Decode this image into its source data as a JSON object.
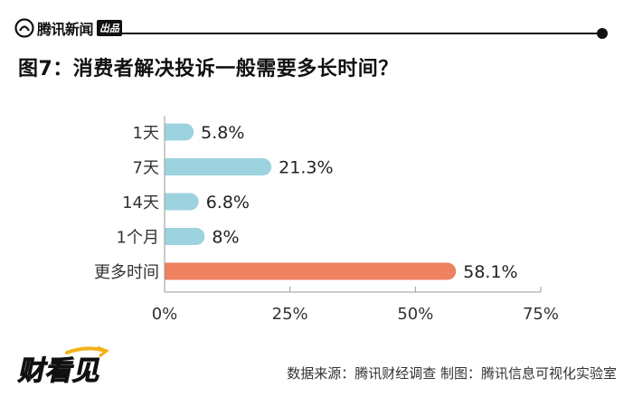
{
  "header": {
    "brand_name": "腾讯新闻",
    "brand_badge": "出品",
    "title": "图7：消费者解决投诉一般需要多长时间？"
  },
  "footer": {
    "logo_text": "财看见",
    "source": "数据来源：腾讯财经调查 制图：腾讯信息可视化实验室"
  },
  "chart_data": {
    "type": "bar",
    "orientation": "horizontal",
    "title": "图7：消费者解决投诉一般需要多长时间？",
    "categories": [
      "1天",
      "7天",
      "14天",
      "1个月",
      "更多时间"
    ],
    "values": [
      5.8,
      21.3,
      6.8,
      8,
      58.1
    ],
    "value_labels": [
      "5.8%",
      "21.3%",
      "6.8%",
      "8%",
      "58.1%"
    ],
    "bar_colors": [
      "#9dd3df",
      "#9dd3df",
      "#9dd3df",
      "#9dd3df",
      "#ee8160"
    ],
    "xlim": [
      0,
      75
    ],
    "xticks": [
      0,
      25,
      50,
      75
    ],
    "xtick_labels": [
      "0%",
      "25%",
      "50%",
      "75%"
    ],
    "xlabel": "",
    "ylabel": "",
    "grid": false,
    "legend": "none"
  }
}
